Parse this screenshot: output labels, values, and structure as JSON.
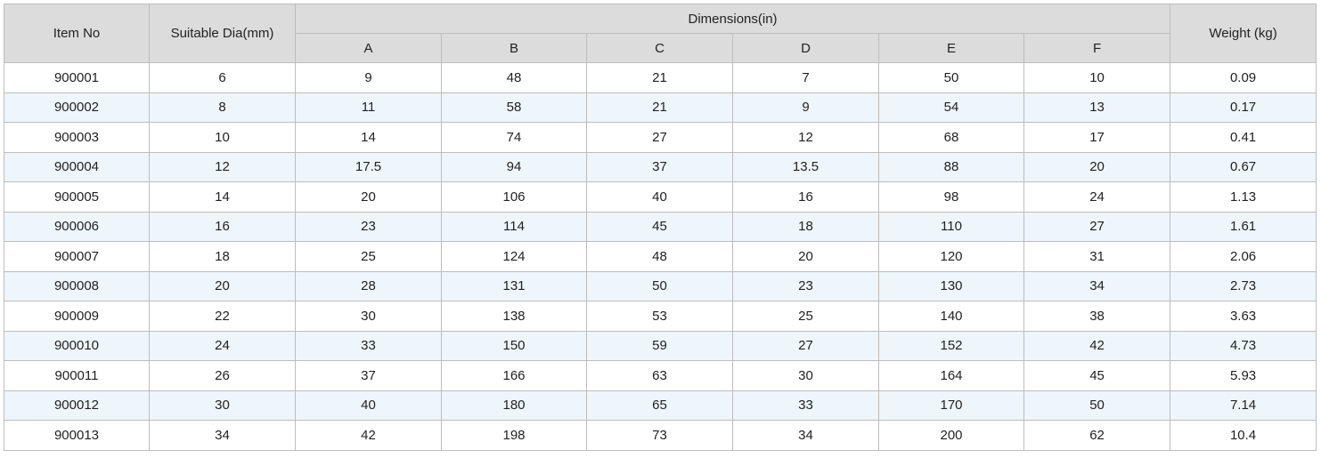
{
  "table": {
    "header": [
      "Item No",
      "Suitable Dia(mm)",
      "Dimensions(in)",
      "Weight (kg)"
    ],
    "subheader": [
      "A",
      "B",
      "C",
      "D",
      "E",
      "F"
    ],
    "rows": [
      [
        "900001",
        "6",
        "9",
        "48",
        "21",
        "7",
        "50",
        "10",
        "0.09"
      ],
      [
        "900002",
        "8",
        "11",
        "58",
        "21",
        "9",
        "54",
        "13",
        "0.17"
      ],
      [
        "900003",
        "10",
        "14",
        "74",
        "27",
        "12",
        "68",
        "17",
        "0.41"
      ],
      [
        "900004",
        "12",
        "17.5",
        "94",
        "37",
        "13.5",
        "88",
        "20",
        "0.67"
      ],
      [
        "900005",
        "14",
        "20",
        "106",
        "40",
        "16",
        "98",
        "24",
        "1.13"
      ],
      [
        "900006",
        "16",
        "23",
        "114",
        "45",
        "18",
        "110",
        "27",
        "1.61"
      ],
      [
        "900007",
        "18",
        "25",
        "124",
        "48",
        "20",
        "120",
        "31",
        "2.06"
      ],
      [
        "900008",
        "20",
        "28",
        "131",
        "50",
        "23",
        "130",
        "34",
        "2.73"
      ],
      [
        "900009",
        "22",
        "30",
        "138",
        "53",
        "25",
        "140",
        "38",
        "3.63"
      ],
      [
        "900010",
        "24",
        "33",
        "150",
        "59",
        "27",
        "152",
        "42",
        "4.73"
      ],
      [
        "900011",
        "26",
        "37",
        "166",
        "63",
        "30",
        "164",
        "45",
        "5.93"
      ],
      [
        "900012",
        "30",
        "40",
        "180",
        "65",
        "33",
        "170",
        "50",
        "7.14"
      ],
      [
        "900013",
        "34",
        "42",
        "198",
        "73",
        "34",
        "200",
        "62",
        "10.4"
      ]
    ]
  }
}
